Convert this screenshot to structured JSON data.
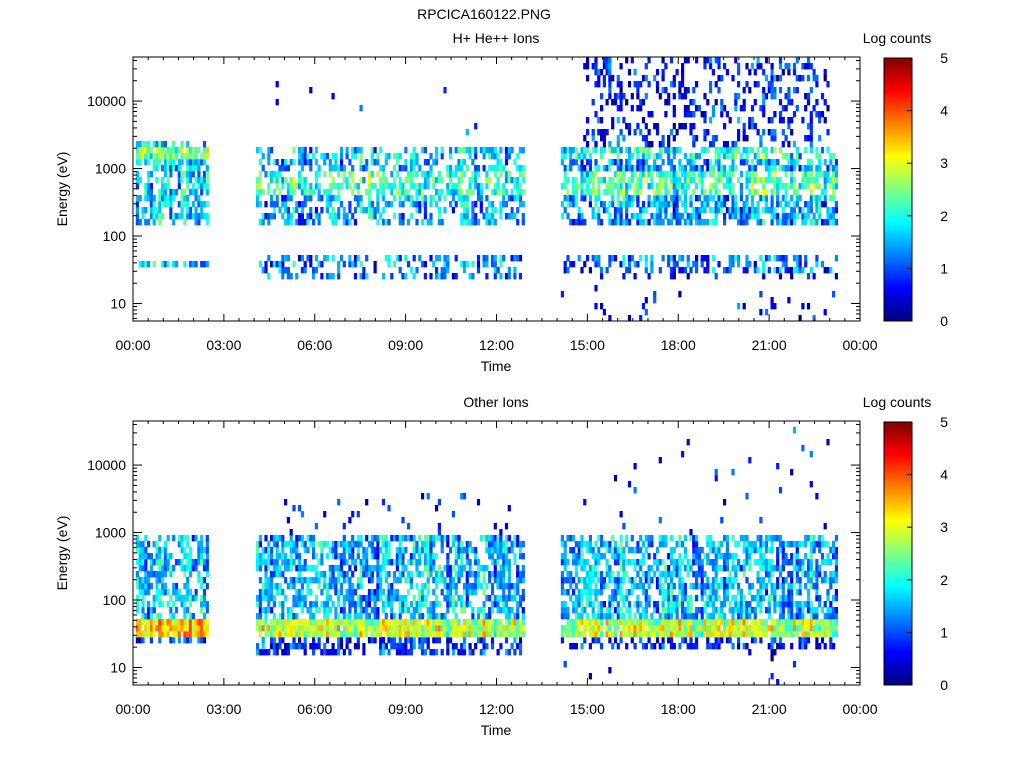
{
  "figure_title": "RPCICA160122.PNG",
  "colorbar": {
    "label": "Log counts",
    "ticks": [
      "0",
      "1",
      "2",
      "3",
      "4",
      "5"
    ],
    "stops": [
      "#00007f",
      "#0000ff",
      "#0080ff",
      "#00ffff",
      "#80ff80",
      "#ffff00",
      "#ff8000",
      "#ff0000",
      "#7f0000"
    ]
  },
  "chart_data": [
    {
      "type": "heatmap",
      "title": "H+ He++ Ions",
      "xlabel": "Time",
      "ylabel": "Energy (eV)",
      "x_ticks": [
        "00:00",
        "03:00",
        "06:00",
        "09:00",
        "12:00",
        "15:00",
        "18:00",
        "21:00",
        "00:00"
      ],
      "y_ticks": [
        "10",
        "100",
        "1000",
        "10000"
      ],
      "y_scale": "log",
      "ylim": [
        5.5,
        45000
      ],
      "xlim_hours": [
        0,
        24
      ],
      "z_label": "Log counts",
      "zlim": [
        0,
        5
      ],
      "data_gaps_hours": [
        [
          2.55,
          4.05
        ],
        [
          12.95,
          14.05
        ]
      ],
      "regions": [
        {
          "t": [
            0.05,
            2.5
          ],
          "e": [
            150,
            2600
          ],
          "level": 1.6,
          "density": 0.55
        },
        {
          "t": [
            0.05,
            2.5
          ],
          "e": [
            1300,
            2000
          ],
          "level": 2.4,
          "density": 0.8
        },
        {
          "t": [
            0.05,
            2.5
          ],
          "e": [
            32,
            45
          ],
          "level": 1.4,
          "density": 0.7
        },
        {
          "t": [
            4.1,
            12.9
          ],
          "e": [
            150,
            2300
          ],
          "level": 1.4,
          "density": 0.5
        },
        {
          "t": [
            4.1,
            12.9
          ],
          "e": [
            400,
            900
          ],
          "level": 2.1,
          "density": 0.55
        },
        {
          "t": [
            4.1,
            12.9
          ],
          "e": [
            1300,
            1900
          ],
          "level": 1.6,
          "density": 0.45
        },
        {
          "t": [
            4.1,
            12.9
          ],
          "e": [
            25,
            48
          ],
          "level": 1.2,
          "density": 0.35
        },
        {
          "t": [
            4.1,
            12.9
          ],
          "e": [
            2500,
            40000
          ],
          "level": 0.5,
          "density": 0.01
        },
        {
          "t": [
            14.1,
            23.3
          ],
          "e": [
            150,
            2300
          ],
          "level": 1.4,
          "density": 0.6
        },
        {
          "t": [
            14.1,
            23.3
          ],
          "e": [
            400,
            900
          ],
          "level": 2.2,
          "density": 0.6
        },
        {
          "t": [
            14.1,
            23.3
          ],
          "e": [
            1300,
            1900
          ],
          "level": 2.0,
          "density": 0.55
        },
        {
          "t": [
            14.1,
            23.3
          ],
          "e": [
            30,
            48
          ],
          "level": 1.1,
          "density": 0.45
        },
        {
          "t": [
            14.9,
            23.0
          ],
          "e": [
            2300,
            45000
          ],
          "level": 0.6,
          "density": 0.3
        },
        {
          "t": [
            14.1,
            23.3
          ],
          "e": [
            5.5,
            30
          ],
          "level": 0.4,
          "density": 0.05
        }
      ]
    },
    {
      "type": "heatmap",
      "title": "Other Ions",
      "xlabel": "Time",
      "ylabel": "Energy (eV)",
      "x_ticks": [
        "00:00",
        "03:00",
        "06:00",
        "09:00",
        "12:00",
        "15:00",
        "18:00",
        "21:00",
        "00:00"
      ],
      "y_ticks": [
        "10",
        "100",
        "1000",
        "10000"
      ],
      "y_scale": "log",
      "ylim": [
        5.5,
        45000
      ],
      "xlim_hours": [
        0,
        24
      ],
      "z_label": "Log counts",
      "zlim": [
        0,
        5
      ],
      "data_gaps_hours": [
        [
          2.55,
          4.05
        ],
        [
          12.95,
          14.05
        ]
      ],
      "regions": [
        {
          "t": [
            0.05,
            2.5
          ],
          "e": [
            28,
            55
          ],
          "level": 3.3,
          "density": 0.95
        },
        {
          "t": [
            0.05,
            2.5
          ],
          "e": [
            55,
            900
          ],
          "level": 1.5,
          "density": 0.55
        },
        {
          "t": [
            0.05,
            2.5
          ],
          "e": [
            22,
            28
          ],
          "level": 0.6,
          "density": 0.6
        },
        {
          "t": [
            4.1,
            12.9
          ],
          "e": [
            28,
            55
          ],
          "level": 2.8,
          "density": 0.95
        },
        {
          "t": [
            4.1,
            12.9
          ],
          "e": [
            55,
            900
          ],
          "level": 1.5,
          "density": 0.6
        },
        {
          "t": [
            4.1,
            12.9
          ],
          "e": [
            16,
            28
          ],
          "level": 0.7,
          "density": 0.6
        },
        {
          "t": [
            4.1,
            12.9
          ],
          "e": [
            900,
            4000
          ],
          "level": 0.5,
          "density": 0.04
        },
        {
          "t": [
            14.1,
            23.3
          ],
          "e": [
            28,
            55
          ],
          "level": 2.8,
          "density": 0.95
        },
        {
          "t": [
            14.1,
            23.3
          ],
          "e": [
            55,
            900
          ],
          "level": 1.5,
          "density": 0.6
        },
        {
          "t": [
            14.1,
            23.3
          ],
          "e": [
            18,
            28
          ],
          "level": 0.6,
          "density": 0.45
        },
        {
          "t": [
            14.1,
            23.3
          ],
          "e": [
            900,
            35000
          ],
          "level": 0.5,
          "density": 0.02
        },
        {
          "t": [
            14.1,
            23.3
          ],
          "e": [
            6,
            18
          ],
          "level": 0.4,
          "density": 0.02
        }
      ]
    }
  ]
}
